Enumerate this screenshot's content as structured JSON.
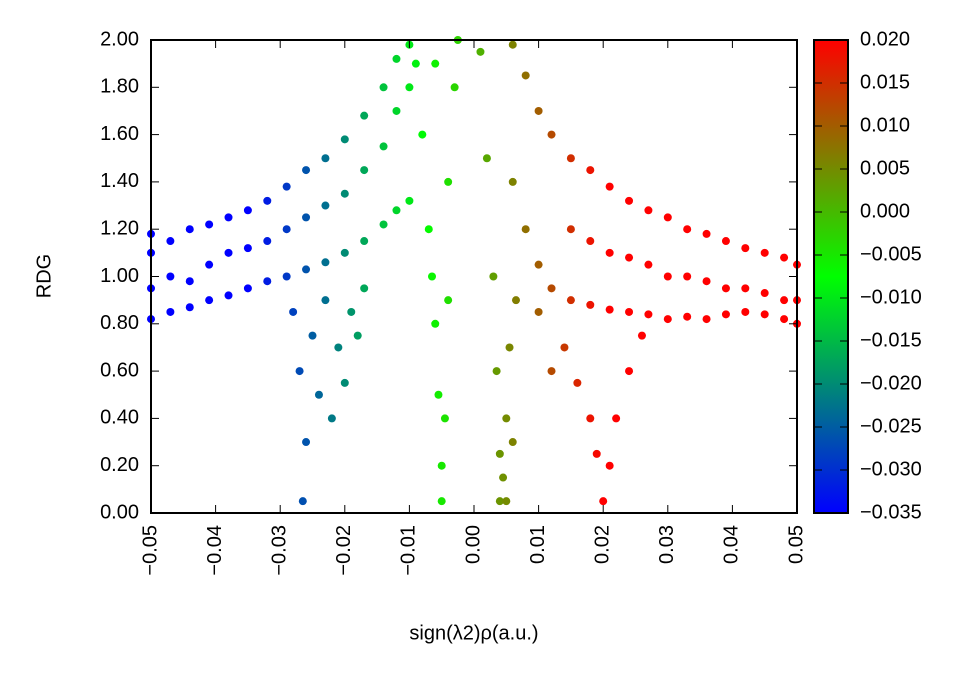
{
  "chart_data": {
    "type": "scatter",
    "xlabel": "sign(λ2)ρ(a.u.)",
    "ylabel": "RDG",
    "xlim": [
      -0.05,
      0.05
    ],
    "ylim": [
      0,
      2
    ],
    "xticks": [
      {
        "value": -0.05,
        "label": "−0.05"
      },
      {
        "value": -0.04,
        "label": "−0.04"
      },
      {
        "value": -0.03,
        "label": "−0.03"
      },
      {
        "value": -0.02,
        "label": "−0.02"
      },
      {
        "value": -0.01,
        "label": "−0.01"
      },
      {
        "value": 0,
        "label": "0.00"
      },
      {
        "value": 0.01,
        "label": "0.01"
      },
      {
        "value": 0.02,
        "label": "0.02"
      },
      {
        "value": 0.03,
        "label": "0.03"
      },
      {
        "value": 0.04,
        "label": "0.04"
      },
      {
        "value": 0.05,
        "label": "0.05"
      }
    ],
    "yticks": [
      {
        "value": 0,
        "label": "0.00"
      },
      {
        "value": 0.2,
        "label": "0.20"
      },
      {
        "value": 0.4,
        "label": "0.40"
      },
      {
        "value": 0.6,
        "label": "0.60"
      },
      {
        "value": 0.8,
        "label": "0.80"
      },
      {
        "value": 1,
        "label": "1.00"
      },
      {
        "value": 1.2,
        "label": "1.20"
      },
      {
        "value": 1.4,
        "label": "1.40"
      },
      {
        "value": 1.6,
        "label": "1.60"
      },
      {
        "value": 1.8,
        "label": "1.80"
      },
      {
        "value": 2,
        "label": "2.00"
      }
    ],
    "clim": [
      -0.035,
      0.02
    ],
    "colormap": [
      {
        "value": -0.035,
        "color": "#0000ff"
      },
      {
        "value": -0.0075,
        "color": "#00ff00"
      },
      {
        "value": 0.02,
        "color": "#ff0000"
      }
    ],
    "cticks": [
      {
        "value": -0.035,
        "label": "−0.035"
      },
      {
        "value": -0.03,
        "label": "−0.030"
      },
      {
        "value": -0.025,
        "label": "−0.025"
      },
      {
        "value": -0.02,
        "label": "−0.020"
      },
      {
        "value": -0.015,
        "label": "−0.015"
      },
      {
        "value": -0.01,
        "label": "−0.010"
      },
      {
        "value": -0.005,
        "label": "−0.005"
      },
      {
        "value": 0,
        "label": "0.000"
      },
      {
        "value": 0.005,
        "label": "0.005"
      },
      {
        "value": 0.01,
        "label": "0.010"
      },
      {
        "value": 0.015,
        "label": "0.015"
      },
      {
        "value": 0.02,
        "label": "0.020"
      }
    ],
    "x": [
      -0.05,
      -0.05,
      -0.05,
      -0.05,
      -0.047,
      -0.047,
      -0.047,
      -0.044,
      -0.044,
      -0.044,
      -0.041,
      -0.041,
      -0.041,
      -0.038,
      -0.038,
      -0.038,
      -0.035,
      -0.035,
      -0.035,
      -0.032,
      -0.032,
      -0.032,
      -0.029,
      -0.029,
      -0.029,
      -0.026,
      -0.026,
      -0.026,
      -0.023,
      -0.023,
      -0.023,
      -0.02,
      -0.02,
      -0.02,
      -0.017,
      -0.017,
      -0.017,
      -0.014,
      -0.014,
      -0.014,
      -0.012,
      -0.012,
      -0.012,
      -0.01,
      -0.01,
      -0.01,
      -0.028,
      -0.027,
      -0.026,
      -0.0265,
      -0.025,
      -0.024,
      -0.023,
      -0.022,
      -0.021,
      -0.02,
      -0.019,
      -0.018,
      -0.017,
      -0.008,
      -0.007,
      -0.0065,
      -0.006,
      -0.0055,
      -0.005,
      -0.005,
      -0.0045,
      -0.004,
      -0.004,
      -0.003,
      -0.0025,
      -0.006,
      -0.009,
      0.001,
      0.002,
      0.003,
      0.0035,
      0.004,
      0.004,
      0.0045,
      0.005,
      0.0055,
      0.006,
      0.005,
      0.0065,
      0.006,
      0.006,
      0.008,
      0.008,
      0.01,
      0.01,
      0.012,
      0.012,
      0.015,
      0.015,
      0.015,
      0.018,
      0.018,
      0.018,
      0.021,
      0.021,
      0.021,
      0.024,
      0.024,
      0.024,
      0.027,
      0.027,
      0.027,
      0.03,
      0.03,
      0.03,
      0.033,
      0.033,
      0.033,
      0.036,
      0.036,
      0.036,
      0.039,
      0.039,
      0.039,
      0.042,
      0.042,
      0.042,
      0.045,
      0.045,
      0.045,
      0.048,
      0.048,
      0.048,
      0.05,
      0.05,
      0.05,
      0.01,
      0.012,
      0.014,
      0.016,
      0.018,
      0.019,
      0.02,
      0.021,
      0.022,
      0.024,
      0.026
    ],
    "values": [
      0.82,
      0.95,
      1.1,
      1.18,
      0.85,
      1.0,
      1.15,
      0.87,
      0.98,
      1.2,
      0.9,
      1.05,
      1.22,
      0.92,
      1.1,
      1.25,
      0.95,
      1.12,
      1.28,
      0.98,
      1.15,
      1.32,
      1.0,
      1.2,
      1.38,
      1.03,
      1.25,
      1.45,
      1.06,
      1.3,
      1.5,
      1.1,
      1.35,
      1.58,
      1.15,
      1.45,
      1.68,
      1.22,
      1.55,
      1.8,
      1.28,
      1.7,
      1.92,
      1.32,
      1.8,
      1.98,
      0.85,
      0.6,
      0.3,
      0.05,
      0.75,
      0.5,
      0.9,
      0.4,
      0.7,
      0.55,
      0.85,
      0.75,
      0.95,
      1.6,
      1.2,
      1.0,
      0.8,
      0.5,
      0.2,
      0.05,
      0.4,
      0.9,
      1.4,
      1.8,
      2.0,
      1.9,
      1.9,
      1.95,
      1.5,
      1.0,
      0.6,
      0.25,
      0.05,
      0.15,
      0.4,
      0.7,
      0.3,
      0.05,
      0.9,
      1.98,
      1.4,
      1.85,
      1.2,
      1.7,
      1.05,
      1.6,
      0.95,
      1.5,
      0.9,
      1.2,
      1.45,
      0.88,
      1.15,
      1.38,
      0.86,
      1.1,
      1.32,
      0.85,
      1.08,
      1.28,
      0.84,
      1.05,
      1.25,
      0.82,
      1.0,
      1.2,
      0.83,
      1.0,
      1.18,
      0.82,
      0.98,
      1.15,
      0.84,
      0.95,
      1.12,
      0.85,
      0.95,
      1.1,
      0.84,
      0.93,
      1.08,
      0.82,
      0.9,
      1.05,
      0.8,
      0.9,
      0.85,
      0.6,
      0.7,
      0.55,
      0.4,
      0.25,
      0.05,
      0.2,
      0.4,
      0.6,
      0.75
    ]
  }
}
